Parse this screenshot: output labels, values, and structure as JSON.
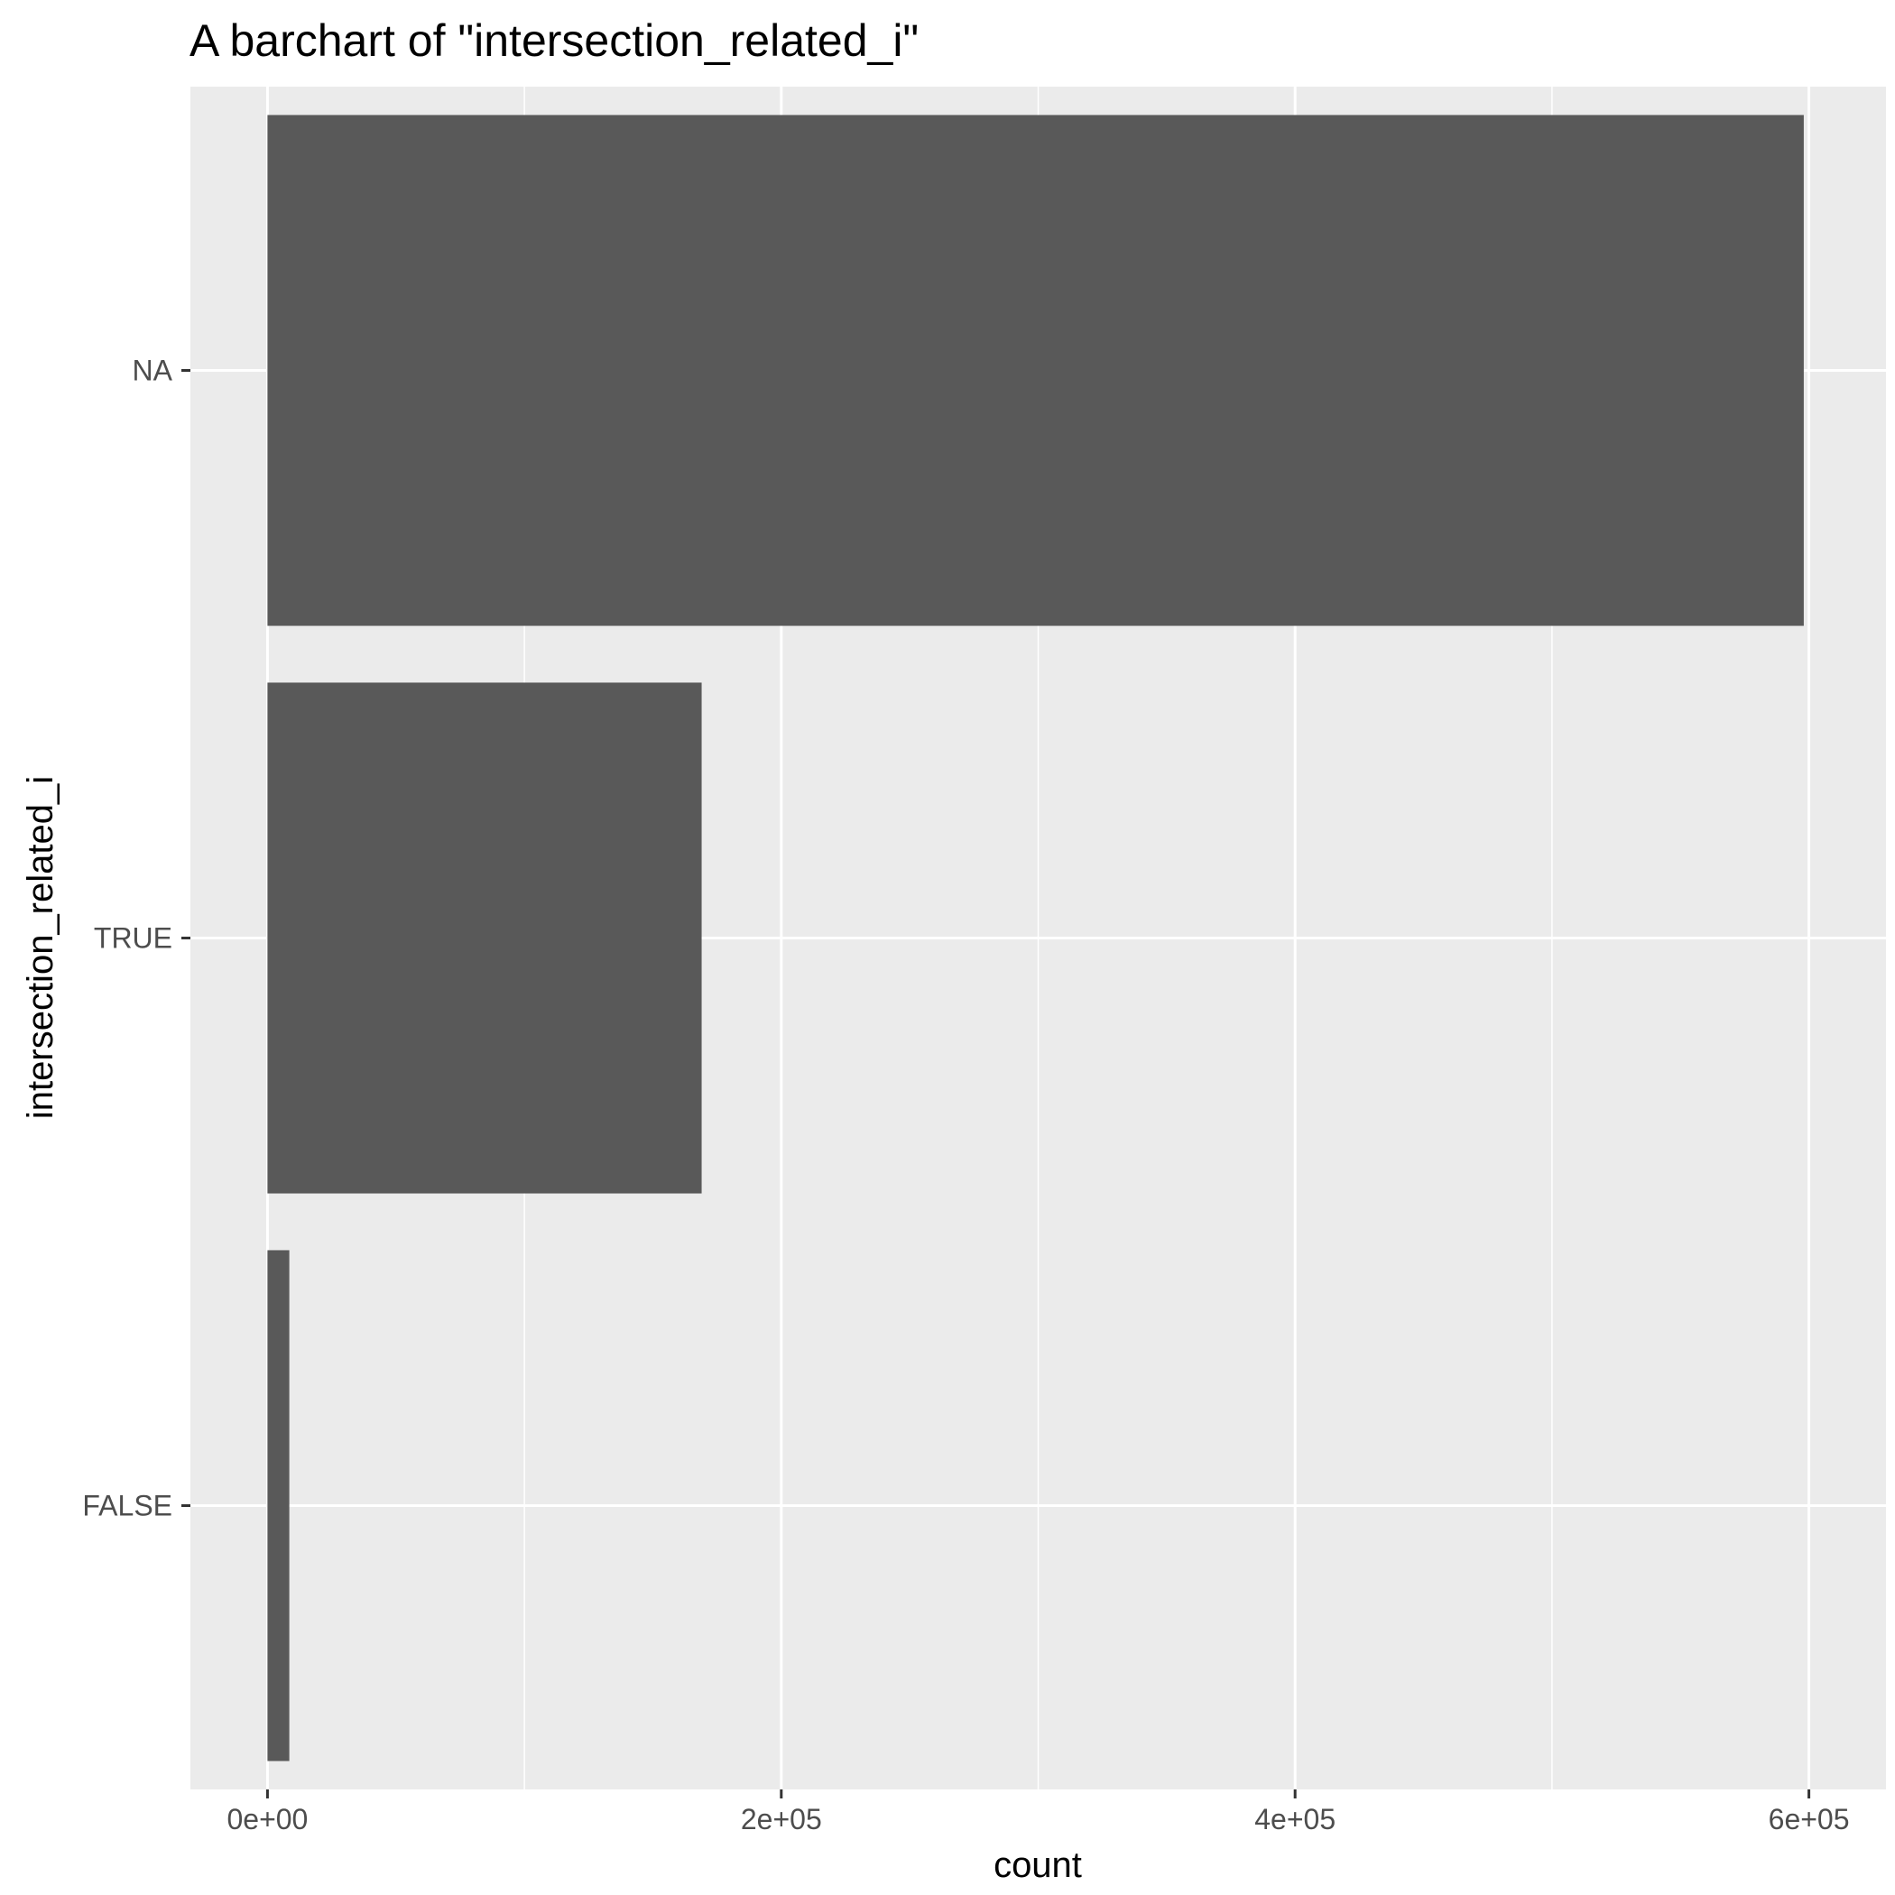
{
  "chart_data": {
    "type": "bar",
    "orientation": "horizontal",
    "title": "A barchart of \"intersection_related_i\"",
    "xlabel": "count",
    "ylabel": "intersection_related_i",
    "categories": [
      "NA",
      "TRUE",
      "FALSE"
    ],
    "values": [
      598000,
      169000,
      8500
    ],
    "xlim": [
      -30000,
      630000
    ],
    "xticks": [
      0,
      200000,
      400000,
      600000
    ],
    "xtick_labels": [
      "0e+00",
      "2e+05",
      "4e+05",
      "6e+05"
    ],
    "x_minor_gridlines": [
      100000,
      300000,
      500000
    ],
    "grid": true,
    "legend": "none",
    "colors": {
      "bar": "#595959",
      "panel": "#ebebeb",
      "grid": "#ffffff",
      "tick": "#333333"
    }
  }
}
